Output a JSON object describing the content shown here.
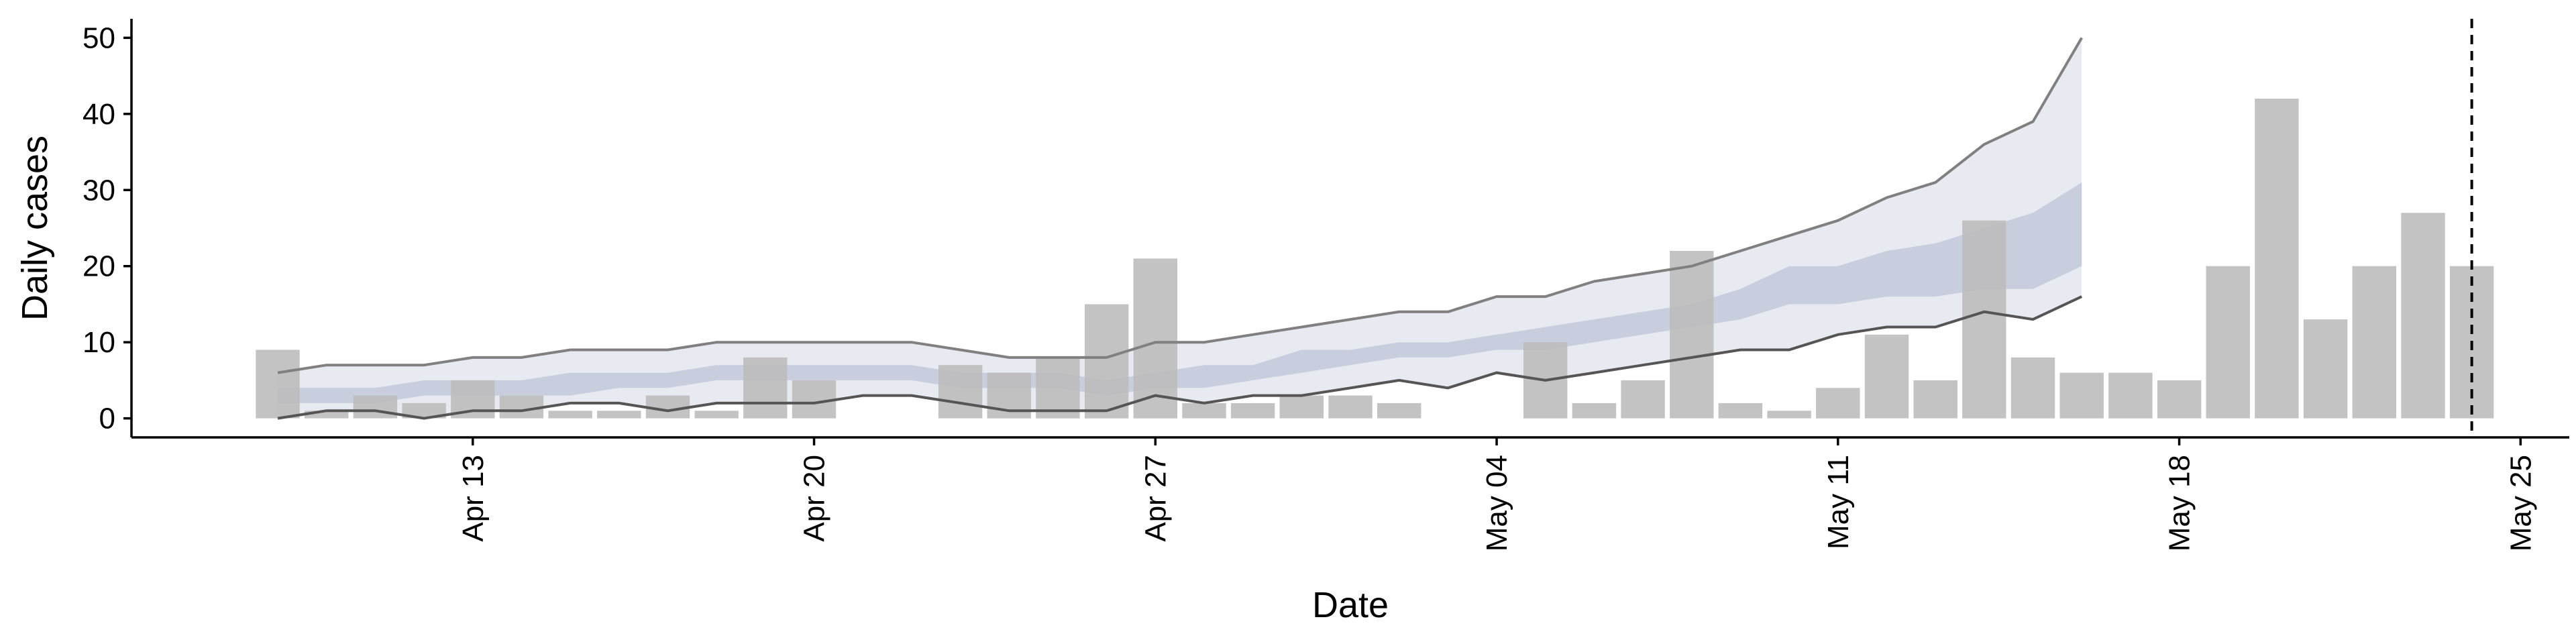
{
  "chart_data": {
    "type": "bar",
    "xlabel": "Date",
    "ylabel": "Daily cases",
    "xlim": [
      "2020-04-06",
      "2020-05-26"
    ],
    "ylim": [
      -2.5,
      52.5
    ],
    "y_ticks": [
      0,
      10,
      20,
      30,
      40,
      50
    ],
    "x_ticks": [
      {
        "date": "2020-04-13",
        "label": "Apr 13"
      },
      {
        "date": "2020-04-20",
        "label": "Apr 20"
      },
      {
        "date": "2020-04-27",
        "label": "Apr 27"
      },
      {
        "date": "2020-05-04",
        "label": "May 04"
      },
      {
        "date": "2020-05-11",
        "label": "May 11"
      },
      {
        "date": "2020-05-18",
        "label": "May 18"
      },
      {
        "date": "2020-05-25",
        "label": "May 25"
      }
    ],
    "grid": false,
    "bars": {
      "color": "#bdbdbd",
      "start_date": "2020-04-09",
      "values": [
        9,
        1,
        3,
        2,
        5,
        3,
        1,
        1,
        3,
        1,
        8,
        5,
        0,
        0,
        7,
        6,
        8,
        15,
        21,
        2,
        2,
        3,
        3,
        2,
        0,
        0,
        10,
        2,
        5,
        22,
        2,
        1,
        4,
        11,
        5,
        26,
        8,
        6,
        6,
        5,
        20,
        42,
        13,
        20,
        27,
        20
      ]
    },
    "forecast": {
      "start_date": "2020-04-09",
      "outer_band_color": "#e8eaf1",
      "inner_band_color": "#c3c9dc",
      "outer_lower": [
        0,
        1,
        1,
        0,
        1,
        1,
        2,
        2,
        1,
        2,
        2,
        2,
        3,
        3,
        2,
        1,
        1,
        1,
        3,
        2,
        3,
        3,
        4,
        5,
        4,
        6,
        5,
        6,
        7,
        8,
        9,
        9,
        11,
        12,
        12,
        14,
        13,
        16
      ],
      "outer_upper": [
        6,
        7,
        7,
        7,
        8,
        8,
        9,
        9,
        9,
        10,
        10,
        10,
        10,
        10,
        9,
        8,
        8,
        8,
        10,
        10,
        11,
        12,
        13,
        14,
        14,
        16,
        16,
        18,
        19,
        20,
        22,
        24,
        26,
        29,
        31,
        36,
        39,
        50
      ],
      "inner_lower": [
        2,
        2,
        2,
        3,
        3,
        3,
        3,
        4,
        4,
        5,
        5,
        5,
        5,
        5,
        4,
        4,
        4,
        3,
        4,
        4,
        5,
        6,
        7,
        8,
        8,
        9,
        9,
        10,
        11,
        12,
        13,
        15,
        15,
        16,
        16,
        17,
        17,
        20
      ],
      "inner_upper": [
        4,
        4,
        4,
        5,
        5,
        5,
        6,
        6,
        6,
        7,
        7,
        7,
        7,
        7,
        6,
        6,
        6,
        5,
        6,
        7,
        7,
        9,
        9,
        10,
        10,
        11,
        12,
        13,
        14,
        15,
        17,
        20,
        20,
        22,
        23,
        25,
        27,
        31
      ],
      "edge_line_color": "#808080"
    },
    "vline": {
      "date": "2020-05-24",
      "style": "dashed",
      "color": "#000000"
    }
  }
}
